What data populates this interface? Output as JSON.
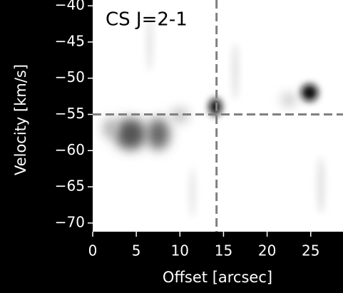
{
  "chart_data": {
    "type": "image",
    "annotation": "CS J=2-1",
    "xlabel": "Offset [arcsec]",
    "ylabel": "Velocity [km/s]",
    "xlim": [
      0,
      28.7
    ],
    "ylim": [
      -71.2,
      -39.2
    ],
    "xticks": [
      0,
      5,
      10,
      15,
      20,
      25
    ],
    "yticks": [
      {
        "value": -40,
        "label": "−40"
      },
      {
        "value": -45,
        "label": "−45"
      },
      {
        "value": -50,
        "label": "−50"
      },
      {
        "value": -55,
        "label": "−55"
      },
      {
        "value": -60,
        "label": "−60"
      },
      {
        "value": -65,
        "label": "−65"
      },
      {
        "value": -70,
        "label": "−70"
      }
    ],
    "vline": 14.2,
    "hline": -55,
    "line_color": "#808080"
  }
}
